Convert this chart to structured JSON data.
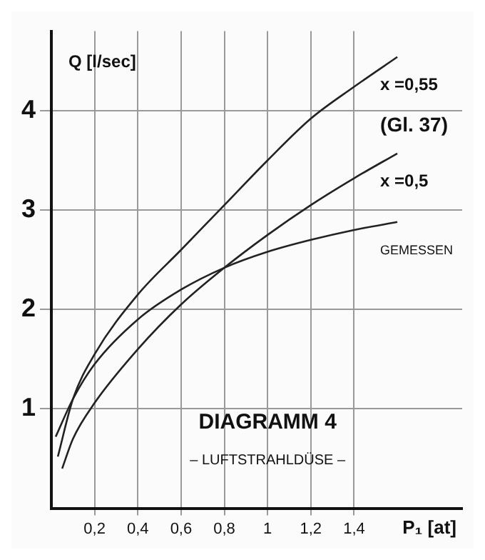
{
  "chart_data": {
    "type": "line",
    "title": "DIAGRAMM 4",
    "subtitle": "– LUFTSTRAHLDÜSE –",
    "xlabel": "P₁ [at]",
    "ylabel": "Q [l/sec]",
    "annotations": [
      "(Gl. 37)"
    ],
    "xlim": [
      0,
      1.9
    ],
    "ylim": [
      0,
      4.8
    ],
    "xticks": [
      {
        "value": 0.2,
        "label": "0,2"
      },
      {
        "value": 0.4,
        "label": "0,4"
      },
      {
        "value": 0.6,
        "label": "0,6"
      },
      {
        "value": 0.8,
        "label": "0,8"
      },
      1,
      {
        "value": 1.2,
        "label": "1,2"
      },
      {
        "value": 1.4,
        "label": "1,4"
      }
    ],
    "yticks": [
      1,
      2,
      3,
      4
    ],
    "grid": true,
    "legend": false,
    "marker": "none",
    "line_style": "solid",
    "series": [
      {
        "name": "x =0,55",
        "color": "#222222",
        "x": [
          0.03,
          0.1,
          0.2,
          0.4,
          0.6,
          0.8,
          1.0,
          1.2,
          1.4,
          1.6
        ],
        "values": [
          0.52,
          1.1,
          1.55,
          2.15,
          2.6,
          3.05,
          3.5,
          3.92,
          4.24,
          4.54
        ]
      },
      {
        "name": "x =0,5",
        "color": "#222222",
        "x": [
          0.05,
          0.1,
          0.2,
          0.4,
          0.6,
          0.8,
          1.0,
          1.2,
          1.4,
          1.6
        ],
        "values": [
          0.4,
          0.7,
          1.06,
          1.6,
          2.05,
          2.42,
          2.75,
          3.05,
          3.32,
          3.57
        ]
      },
      {
        "name": "GEMESSEN",
        "color": "#222222",
        "x": [
          0.02,
          0.1,
          0.2,
          0.4,
          0.6,
          0.8,
          1.0,
          1.2,
          1.4,
          1.6
        ],
        "values": [
          0.72,
          1.1,
          1.45,
          1.9,
          2.2,
          2.42,
          2.58,
          2.7,
          2.8,
          2.88
        ]
      }
    ]
  }
}
